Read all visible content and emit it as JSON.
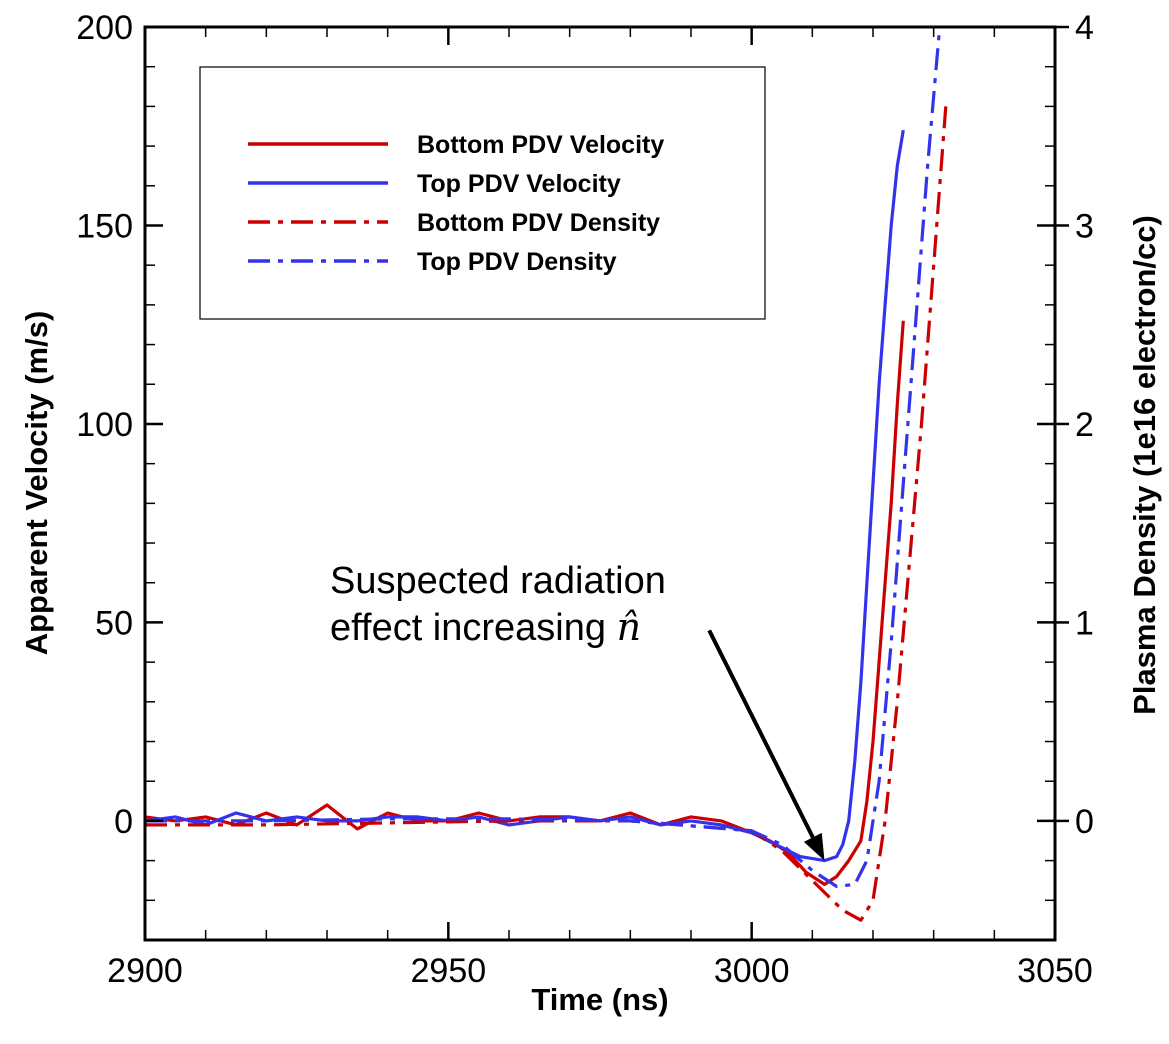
{
  "chart_data": {
    "type": "line",
    "xlabel": "Time (ns)",
    "ylabel": "Apparent Velocity (m/s)",
    "y2label": "Plasma Density (1e16 electron/cc)",
    "xlim": [
      2900,
      3050
    ],
    "ylim": [
      -30,
      200
    ],
    "y2lim": [
      -0.6,
      4
    ],
    "x_ticks": [
      "2900",
      "2950",
      "3000",
      "3050"
    ],
    "y_ticks": [
      "0",
      "50",
      "100",
      "150",
      "200"
    ],
    "y2_ticks": [
      "0",
      "1",
      "2",
      "3",
      "4"
    ],
    "grid": false,
    "legend_position": "top-left",
    "annotation": {
      "line1": "Suspected radiation",
      "line2_prefix": "effect increasing ",
      "symbol": "n̂",
      "arrow_from": [
        2993,
        48
      ],
      "arrow_to": [
        3012,
        -10
      ]
    },
    "series": [
      {
        "name": "Bottom PDV Velocity",
        "color": "#cc0000",
        "style": "solid",
        "axis": "left",
        "x": [
          2900,
          2905,
          2910,
          2915,
          2920,
          2925,
          2930,
          2935,
          2940,
          2945,
          2950,
          2955,
          2960,
          2965,
          2970,
          2975,
          2980,
          2985,
          2990,
          2995,
          3000,
          3003,
          3006,
          3009,
          3012,
          3014,
          3016,
          3018,
          3019,
          3020,
          3021,
          3022,
          3023,
          3024,
          3025
        ],
        "y": [
          1,
          0,
          1,
          -1,
          2,
          -1,
          4,
          -2,
          2,
          0,
          0,
          2,
          0,
          1,
          1,
          0,
          2,
          -1,
          1,
          0,
          -3,
          -5,
          -8,
          -13,
          -16,
          -14,
          -10,
          -5,
          5,
          20,
          40,
          60,
          80,
          105,
          126
        ]
      },
      {
        "name": "Top PDV Velocity",
        "color": "#3333ee",
        "style": "solid",
        "axis": "left",
        "x": [
          2900,
          2905,
          2910,
          2915,
          2920,
          2925,
          2930,
          2935,
          2940,
          2945,
          2950,
          2955,
          2960,
          2965,
          2970,
          2975,
          2980,
          2985,
          2990,
          2995,
          3000,
          3004,
          3008,
          3012,
          3014,
          3015,
          3016,
          3017,
          3018,
          3019,
          3020,
          3021,
          3022,
          3023,
          3024,
          3025
        ],
        "y": [
          0,
          1,
          -1,
          2,
          0,
          1,
          0,
          0,
          1,
          1,
          0,
          1,
          -1,
          0,
          1,
          0,
          1,
          -1,
          0,
          -1,
          -3,
          -6,
          -9,
          -10,
          -9,
          -6,
          0,
          15,
          35,
          60,
          85,
          110,
          130,
          150,
          165,
          174
        ]
      },
      {
        "name": "Bottom PDV Density",
        "color": "#cc0000",
        "style": "dashdot",
        "axis": "right",
        "x": [
          2900,
          2920,
          2940,
          2960,
          2980,
          3000,
          3005,
          3010,
          3015,
          3018,
          3020,
          3022,
          3024,
          3026,
          3028,
          3030,
          3032
        ],
        "y": [
          -0.02,
          -0.02,
          -0.01,
          0.0,
          0.0,
          -0.05,
          -0.15,
          -0.3,
          -0.45,
          -0.5,
          -0.4,
          0.0,
          0.6,
          1.3,
          2.0,
          2.8,
          3.6
        ]
      },
      {
        "name": "Top PDV Density",
        "color": "#3333ee",
        "style": "dashdot",
        "axis": "right",
        "x": [
          2900,
          2920,
          2940,
          2960,
          2980,
          3000,
          3005,
          3010,
          3014,
          3017,
          3019,
          3021,
          3023,
          3025,
          3027,
          3029,
          3031
        ],
        "y": [
          0.0,
          0.0,
          0.01,
          0.01,
          0.0,
          -0.05,
          -0.12,
          -0.25,
          -0.33,
          -0.32,
          -0.2,
          0.2,
          0.9,
          1.7,
          2.5,
          3.3,
          4.0
        ]
      }
    ]
  }
}
